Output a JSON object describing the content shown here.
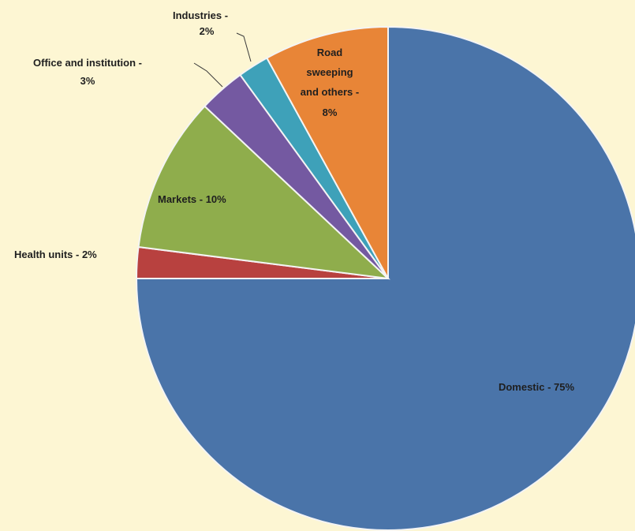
{
  "chart_data": {
    "type": "pie",
    "start_angle_deg": 0,
    "direction": "clockwise",
    "slices": [
      {
        "label": "Domestic - 75%",
        "value": 75,
        "color": "#4a74a9"
      },
      {
        "label": "Health units - 2%",
        "value": 2,
        "color": "#b8413f"
      },
      {
        "label": "Markets - 10%",
        "value": 10,
        "color": "#8fad4c"
      },
      {
        "label": "Office and institution - 3%",
        "value": 3,
        "color": "#7459a1"
      },
      {
        "label": "Industries - 2%",
        "value": 2,
        "color": "#3ea1b9"
      },
      {
        "label": "Road sweeping and others - 8%",
        "value": 8,
        "color": "#e88537"
      }
    ]
  },
  "labels": {
    "domestic": "Domestic - 75%",
    "health_units": "Health units - 2%",
    "markets": "Markets - 10%",
    "office_line1": "Office and institution -",
    "office_line2": "3%",
    "industries_line1": "Industries -",
    "industries_line2": "2%",
    "road_line1": "Road",
    "road_line2": "sweeping",
    "road_line3": "and others -",
    "road_line4": "8%"
  }
}
